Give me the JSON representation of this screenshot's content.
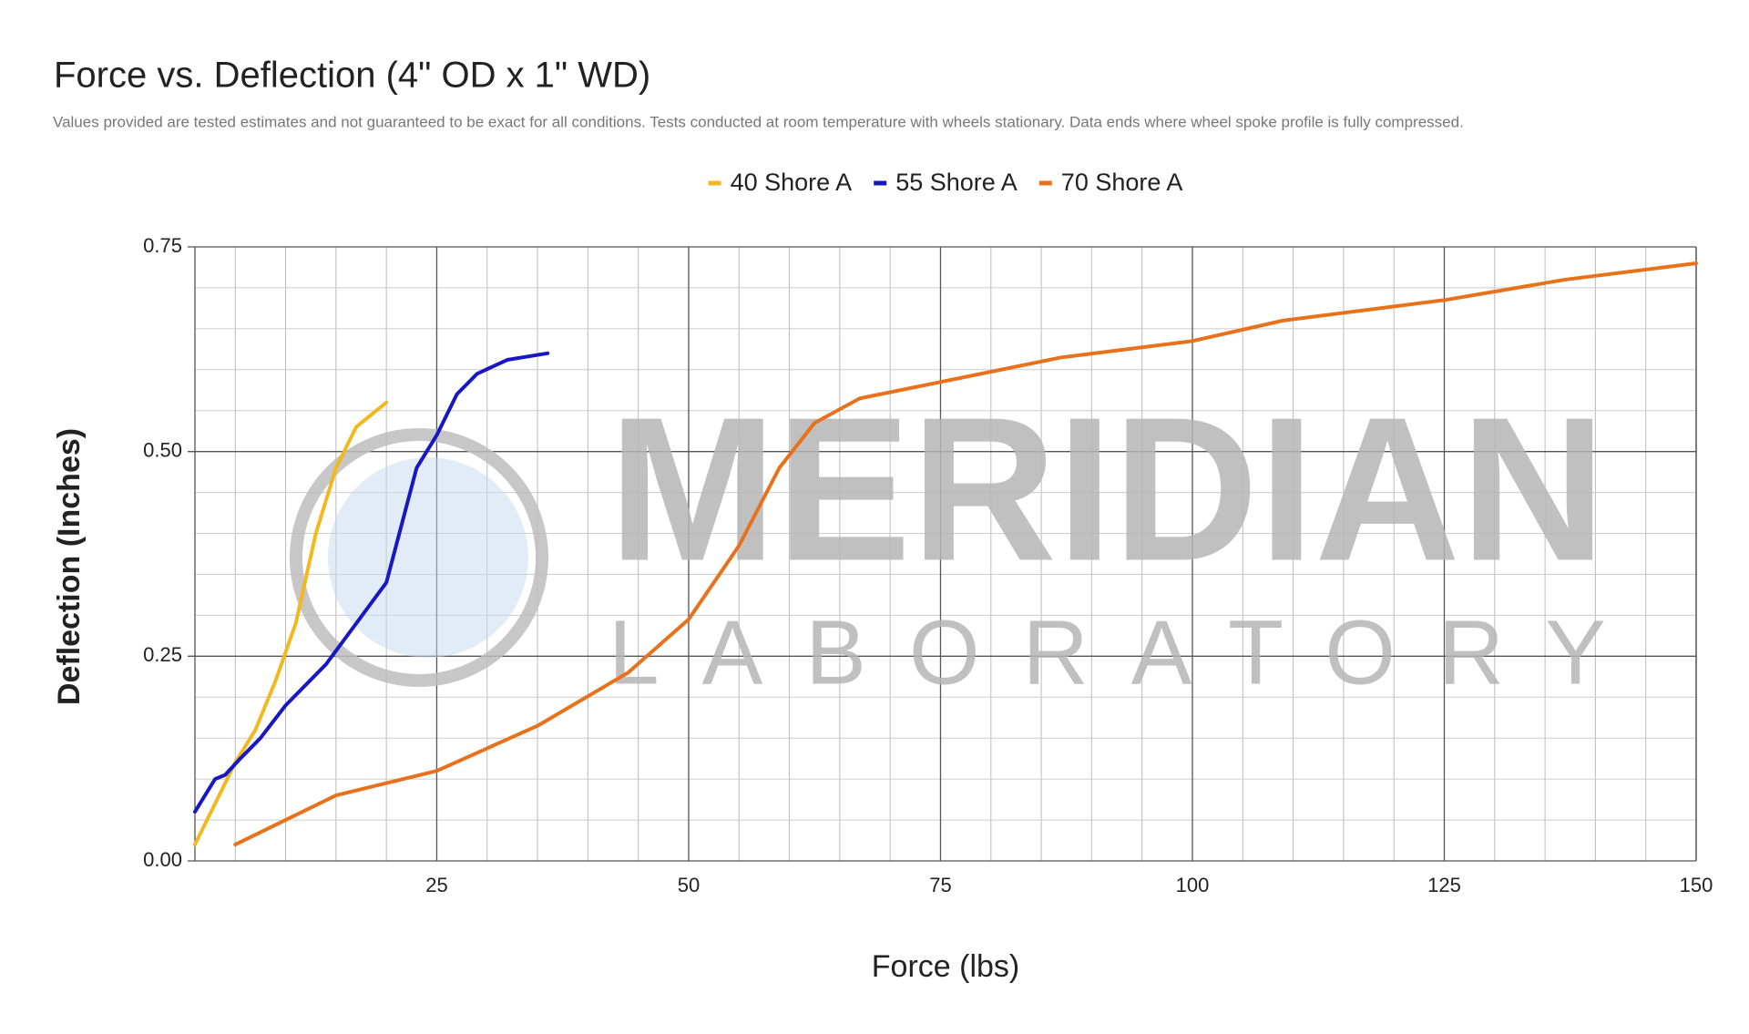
{
  "chart_data": {
    "type": "line",
    "title": "Force vs. Deflection (4\" OD x 1\" WD)",
    "subtitle": "Values provided are tested estimates and not guaranteed to be exact for all conditions. Tests conducted at room temperature with wheels stationary. Data ends where wheel spoke profile is fully compressed.",
    "x_label": "Force (lbs)",
    "y_label": "Deflection (Inches)",
    "watermark": {
      "text": "MERIDIAN",
      "subtext": "LABORATORY"
    },
    "xlim": [
      1,
      150
    ],
    "xticks": [
      25,
      50,
      75,
      100,
      125,
      150
    ],
    "x_minor_grid": [
      5,
      10,
      15,
      20,
      30,
      35,
      40,
      45,
      55,
      60,
      65,
      70,
      80,
      85,
      90,
      95,
      105,
      110,
      115,
      120,
      130,
      135,
      140,
      145
    ],
    "ylim": [
      0,
      0.75
    ],
    "yticks": [
      {
        "value": 0,
        "label": "0.00"
      },
      {
        "value": 0.25,
        "label": "0.25"
      },
      {
        "value": 0.5,
        "label": "0.50"
      },
      {
        "value": 0.75,
        "label": "0.75"
      }
    ],
    "y_minor_grid": [
      0.05,
      0.1,
      0.15,
      0.2,
      0.3,
      0.35,
      0.4,
      0.45,
      0.55,
      0.6,
      0.65,
      0.7
    ],
    "grid": true,
    "legend": "top",
    "series": [
      {
        "name": "40 Shore A",
        "color": "#f1b81f",
        "x": [
          1,
          3,
          5,
          7,
          9,
          11,
          13,
          15,
          17,
          20
        ],
        "values": [
          0.02,
          0.07,
          0.12,
          0.16,
          0.22,
          0.29,
          0.4,
          0.48,
          0.53,
          0.56
        ]
      },
      {
        "name": "55 Shore A",
        "color": "#1717c4",
        "x": [
          1,
          3,
          4,
          5.5,
          7.5,
          10,
          14,
          17,
          20,
          21.5,
          23,
          25,
          27,
          29,
          32,
          36
        ],
        "values": [
          0.06,
          0.1,
          0.105,
          0.125,
          0.15,
          0.19,
          0.24,
          0.29,
          0.34,
          0.41,
          0.48,
          0.52,
          0.57,
          0.595,
          0.612,
          0.62
        ]
      },
      {
        "name": "70 Shore A",
        "color": "#e8711c",
        "x": [
          5,
          10,
          15,
          25,
          35,
          44,
          50,
          55,
          59,
          62.5,
          67,
          75,
          87,
          100,
          109,
          125,
          137,
          150
        ],
        "values": [
          0.02,
          0.05,
          0.08,
          0.11,
          0.165,
          0.23,
          0.295,
          0.385,
          0.48,
          0.535,
          0.565,
          0.585,
          0.615,
          0.635,
          0.66,
          0.685,
          0.71,
          0.73
        ]
      }
    ]
  }
}
